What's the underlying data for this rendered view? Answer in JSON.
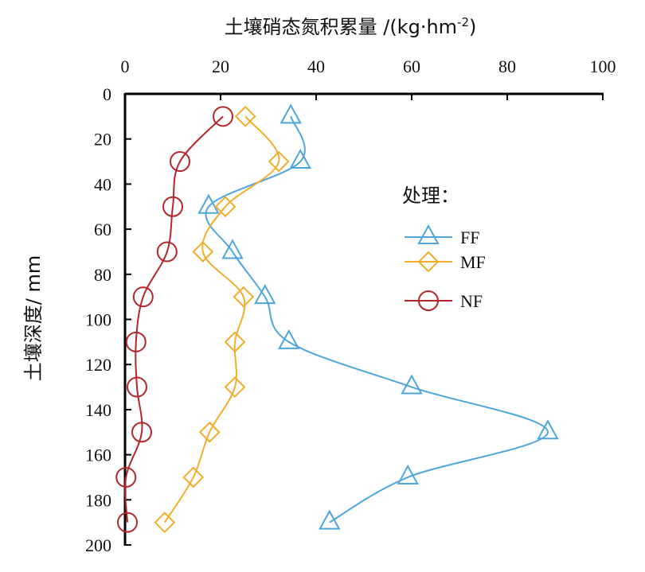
{
  "chart_data": {
    "type": "line",
    "title_main": "土壤硝态氮积累量 /(kg·hm",
    "title_sup": "-2",
    "title_end": ")",
    "xlabel": "土壤硝态氮积累量 /(kg·hm-2)",
    "ylabel": "土壤深度/ mm",
    "xlim": [
      0,
      100
    ],
    "ylim": [
      0,
      200
    ],
    "x_axis_position": "top",
    "y_inverted": true,
    "xticks": [
      "0",
      "20",
      "40",
      "60",
      "80",
      "100"
    ],
    "yticks": [
      "0",
      "20",
      "40",
      "60",
      "80",
      "100",
      "120",
      "140",
      "160",
      "180",
      "200"
    ],
    "grid": false,
    "legend_title": "处理：",
    "legend_position": "right-middle",
    "depth": [
      10,
      30,
      50,
      70,
      90,
      110,
      130,
      150,
      170,
      190
    ],
    "series": [
      {
        "name": "FF",
        "color": "#4DA6DB",
        "marker": "triangle",
        "values": [
          34.7,
          36.7,
          17.5,
          22.5,
          29.3,
          34.3,
          60.0,
          88.5,
          59.2,
          42.8
        ]
      },
      {
        "name": "MF",
        "color": "#F0AE2C",
        "marker": "diamond",
        "values": [
          25.2,
          32.2,
          21.0,
          16.3,
          24.8,
          23.0,
          23.0,
          17.7,
          14.3,
          8.3
        ]
      },
      {
        "name": "NF",
        "color": "#B2262C",
        "marker": "circle",
        "values": [
          20.5,
          11.5,
          10.0,
          8.8,
          3.8,
          2.3,
          2.5,
          3.5,
          0.2,
          0.5
        ]
      }
    ]
  }
}
